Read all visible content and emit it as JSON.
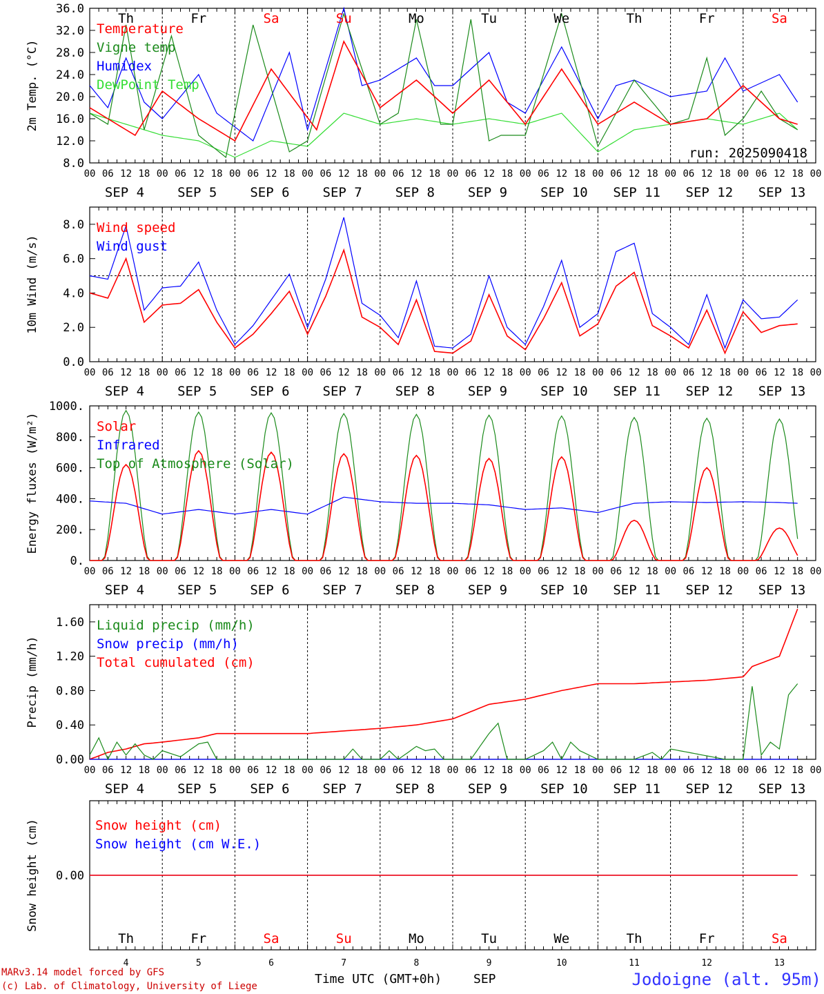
{
  "colors": {
    "red": "#ff0000",
    "green": "#1a8a1a",
    "blue": "#0000ff",
    "lightgreen": "#33dd33",
    "axis": "#000000",
    "footer_red": "#cc0000",
    "station_blue": "#3333ff"
  },
  "time_axis": {
    "hour_ticks": [
      "00",
      "06",
      "12",
      "18"
    ],
    "last_tick": "00",
    "dates": [
      "SEP  4",
      "SEP  5",
      "SEP  6",
      "SEP  7",
      "SEP  8",
      "SEP  9",
      "SEP 10",
      "SEP 11",
      "SEP 12",
      "SEP 13"
    ],
    "days": [
      "Th",
      "Fr",
      "Sa",
      "Su",
      "Mo",
      "Tu",
      "We",
      "Th",
      "Fr",
      "Sa"
    ],
    "weekend": [
      false,
      false,
      true,
      true,
      false,
      false,
      false,
      false,
      false,
      true
    ],
    "day_numbers": [
      "4",
      "5",
      "6",
      "7",
      "8",
      "9",
      "10",
      "11",
      "12",
      "13"
    ],
    "xlabel": "Time UTC (GMT+0h)",
    "month": "SEP"
  },
  "footer": {
    "model": "MARv3.14 model forced by GFS",
    "lab": "(c) Lab. of Climatology, University of Liege",
    "station": "Jodoigne (alt. 95m)"
  },
  "chart_data": [
    {
      "type": "line",
      "ylabel": "2m Temp. (°C)",
      "ylim": [
        8,
        36
      ],
      "yticks": [
        "8.0",
        "12.0",
        "16.0",
        "20.0",
        "24.0",
        "28.0",
        "32.0",
        "36.0"
      ],
      "run": "run: 2025090418",
      "series": [
        {
          "name": "Temperature",
          "color": "red",
          "x_hours": [
            0,
            6,
            15,
            24,
            36,
            48,
            60,
            75,
            84,
            96,
            108,
            120,
            132,
            144,
            156,
            168,
            180,
            192,
            204,
            216,
            228,
            234
          ],
          "values": [
            18,
            16,
            13,
            21,
            16,
            12,
            25,
            14,
            30,
            18,
            23,
            17,
            23,
            15,
            25,
            15,
            19,
            15,
            16,
            22,
            16,
            15
          ]
        },
        {
          "name": "Vigne temp",
          "color": "green",
          "x_hours": [
            0,
            6,
            12,
            18,
            27,
            36,
            45,
            54,
            66,
            72,
            84,
            96,
            102,
            108,
            116,
            120,
            126,
            132,
            136,
            144,
            156,
            168,
            180,
            192,
            198,
            204,
            210,
            216,
            222,
            228,
            234
          ],
          "values": [
            17,
            15,
            33,
            14,
            31,
            13,
            9,
            33,
            10,
            12,
            35,
            15,
            17,
            34,
            15,
            15,
            34,
            12,
            13,
            13,
            35,
            11,
            23,
            15,
            16,
            27,
            13,
            16,
            21,
            16,
            14
          ]
        },
        {
          "name": "Humidex",
          "color": "blue",
          "x_hours": [
            0,
            6,
            12,
            18,
            24,
            36,
            42,
            54,
            66,
            72,
            84,
            90,
            96,
            108,
            114,
            120,
            132,
            138,
            144,
            156,
            168,
            174,
            180,
            192,
            204,
            210,
            216,
            228,
            234
          ],
          "values": [
            22,
            18,
            27,
            19,
            16,
            24,
            17,
            12,
            28,
            14,
            36,
            22,
            23,
            27,
            22,
            22,
            28,
            19,
            17,
            29,
            16,
            22,
            23,
            20,
            21,
            27,
            21,
            24,
            19
          ]
        },
        {
          "name": "DewPoint Temp",
          "color": "lightgreen",
          "x_hours": [
            0,
            12,
            24,
            36,
            48,
            60,
            72,
            84,
            96,
            108,
            120,
            132,
            144,
            156,
            168,
            180,
            192,
            204,
            216,
            228,
            234
          ],
          "values": [
            17,
            15,
            13,
            12,
            9,
            12,
            11,
            17,
            15,
            16,
            15,
            16,
            15,
            17,
            10,
            14,
            15,
            16,
            15,
            17,
            14
          ]
        }
      ]
    },
    {
      "type": "line",
      "ylabel": "10m Wind (m/s)",
      "ylim": [
        0,
        9
      ],
      "yticks": [
        "0.0",
        "2.0",
        "4.0",
        "6.0",
        "8.0"
      ],
      "ref_line": 5.0,
      "series": [
        {
          "name": "Wind speed",
          "color": "red",
          "x_hours": [
            0,
            6,
            12,
            18,
            24,
            30,
            36,
            42,
            48,
            54,
            60,
            66,
            72,
            78,
            84,
            90,
            96,
            102,
            108,
            114,
            120,
            126,
            132,
            138,
            144,
            150,
            156,
            162,
            168,
            174,
            180,
            186,
            192,
            198,
            204,
            210,
            216,
            222,
            228,
            234
          ],
          "values": [
            4.0,
            3.7,
            6.0,
            2.3,
            3.3,
            3.4,
            4.2,
            2.3,
            0.8,
            1.6,
            2.8,
            4.1,
            1.6,
            3.8,
            6.5,
            2.6,
            2.0,
            1.0,
            3.6,
            0.6,
            0.5,
            1.2,
            3.9,
            1.5,
            0.7,
            2.5,
            4.6,
            1.5,
            2.2,
            4.4,
            5.2,
            2.1,
            1.5,
            0.8,
            3.0,
            0.5,
            2.9,
            1.7,
            2.1,
            2.2
          ]
        },
        {
          "name": "Wind gust",
          "color": "blue",
          "x_hours": [
            0,
            6,
            12,
            18,
            24,
            30,
            36,
            42,
            48,
            54,
            60,
            66,
            72,
            78,
            84,
            90,
            96,
            102,
            108,
            114,
            120,
            126,
            132,
            138,
            144,
            150,
            156,
            162,
            168,
            174,
            180,
            186,
            192,
            198,
            204,
            210,
            216,
            222,
            228,
            234
          ],
          "values": [
            5.0,
            4.8,
            7.9,
            3.0,
            4.3,
            4.4,
            5.8,
            3.0,
            1.0,
            2.1,
            3.6,
            5.1,
            2.0,
            4.8,
            8.4,
            3.4,
            2.7,
            1.4,
            4.7,
            0.9,
            0.8,
            1.6,
            5.0,
            2.0,
            1.0,
            3.2,
            5.9,
            2.0,
            2.8,
            6.4,
            6.9,
            2.8,
            2.0,
            1.0,
            3.9,
            0.8,
            3.6,
            2.5,
            2.6,
            3.6
          ]
        }
      ]
    },
    {
      "type": "line",
      "ylabel": "Energy fluxes (W/m²)",
      "ylim": [
        0,
        1000
      ],
      "yticks": [
        "0.",
        "200.",
        "400.",
        "600.",
        "800.",
        "1000."
      ],
      "series": [
        {
          "name": "Solar",
          "color": "red",
          "daily_peaks": [
            620,
            710,
            700,
            690,
            680,
            660,
            670,
            260,
            600,
            210
          ]
        },
        {
          "name": "Infrared",
          "color": "blue",
          "x_hours": [
            0,
            12,
            24,
            36,
            48,
            60,
            72,
            84,
            96,
            108,
            120,
            132,
            144,
            156,
            168,
            180,
            192,
            204,
            216,
            228,
            234
          ],
          "values": [
            385,
            370,
            300,
            330,
            300,
            330,
            300,
            410,
            380,
            370,
            370,
            360,
            330,
            340,
            310,
            370,
            380,
            375,
            380,
            375,
            370
          ]
        },
        {
          "name": "Top of Atmosphere (Solar)",
          "color": "green",
          "daily_peaks": [
            970,
            960,
            955,
            950,
            945,
            940,
            935,
            925,
            920,
            915
          ]
        }
      ]
    },
    {
      "type": "line",
      "ylabel": "Precip (mm/h)",
      "ylim": [
        0,
        1.8
      ],
      "yticks": [
        "0.00",
        "0.40",
        "0.80",
        "1.20",
        "1.60"
      ],
      "series": [
        {
          "name": "Liquid precip (mm/h)",
          "color": "green",
          "x_hours": [
            0,
            3,
            6,
            9,
            12,
            15,
            18,
            21,
            24,
            30,
            36,
            39,
            42,
            48,
            60,
            72,
            84,
            87,
            90,
            96,
            99,
            102,
            108,
            111,
            114,
            117,
            120,
            126,
            132,
            135,
            138,
            144,
            150,
            153,
            156,
            159,
            162,
            168,
            180,
            186,
            189,
            192,
            210,
            216,
            219,
            222,
            225,
            228,
            231,
            234
          ],
          "values": [
            0.05,
            0.25,
            0.0,
            0.2,
            0.05,
            0.18,
            0.05,
            0.0,
            0.1,
            0.03,
            0.18,
            0.2,
            0.0,
            0.0,
            0.0,
            0.0,
            0.0,
            0.12,
            0.0,
            0.0,
            0.1,
            0.0,
            0.15,
            0.1,
            0.12,
            0.0,
            0.0,
            0.0,
            0.3,
            0.42,
            0.0,
            0.0,
            0.1,
            0.2,
            0.0,
            0.2,
            0.1,
            0.0,
            0.0,
            0.08,
            0.0,
            0.12,
            0.0,
            0.0,
            0.85,
            0.05,
            0.2,
            0.12,
            0.75,
            0.88
          ]
        },
        {
          "name": "Snow precip (mm/h)",
          "color": "blue",
          "x_hours": [
            0,
            234
          ],
          "values": [
            0,
            0
          ]
        },
        {
          "name": "Total cumulated (cm)",
          "color": "red",
          "x_hours": [
            0,
            6,
            12,
            18,
            24,
            36,
            42,
            48,
            60,
            72,
            84,
            96,
            108,
            120,
            132,
            138,
            144,
            156,
            168,
            180,
            192,
            204,
            216,
            219,
            228,
            234
          ],
          "values": [
            0.0,
            0.08,
            0.12,
            0.18,
            0.2,
            0.25,
            0.3,
            0.3,
            0.3,
            0.3,
            0.33,
            0.36,
            0.4,
            0.47,
            0.64,
            0.67,
            0.7,
            0.8,
            0.88,
            0.88,
            0.9,
            0.92,
            0.96,
            1.08,
            1.2,
            1.75
          ]
        }
      ]
    },
    {
      "type": "line",
      "ylabel": "Snow height (cm)",
      "ylim": [
        -1,
        1
      ],
      "yticks": [
        "0.00"
      ],
      "series": [
        {
          "name": "Snow height (cm)",
          "color": "red",
          "x_hours": [
            0,
            234
          ],
          "values": [
            0,
            0
          ]
        },
        {
          "name": "Snow height (cm W.E.)",
          "color": "blue",
          "x_hours": [
            0,
            234
          ],
          "values": [
            0,
            0
          ]
        }
      ]
    }
  ]
}
